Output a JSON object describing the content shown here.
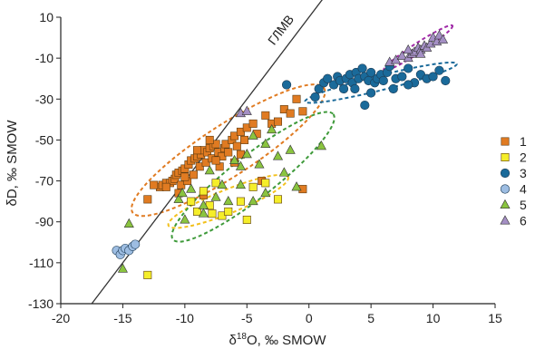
{
  "chart_data": {
    "type": "scatter",
    "xlabel_main": "δ",
    "xlabel_sup": "18",
    "xlabel_rest": "O, ‰ SMOW",
    "ylabel": "δD, ‰ SMOW",
    "xlim": [
      -20,
      15
    ],
    "ylim": [
      -130,
      10
    ],
    "xticks": [
      -20,
      -15,
      -10,
      -5,
      0,
      5,
      10,
      15
    ],
    "yticks": [
      10,
      -10,
      -30,
      -50,
      -70,
      -90,
      -110,
      -130
    ],
    "grid": false,
    "legend_position": "right",
    "gmwl": {
      "label": "ГЛМВ",
      "points": [
        [
          -17.5,
          -130
        ],
        [
          1.5,
          22
        ]
      ]
    },
    "series": [
      {
        "name": "1",
        "marker": "square",
        "color": "#e07b22",
        "points": [
          [
            -13,
            -79
          ],
          [
            -12,
            -73
          ],
          [
            -11.8,
            -72
          ],
          [
            -11.5,
            -71
          ],
          [
            -11.2,
            -71
          ],
          [
            -11,
            -70
          ],
          [
            -10.8,
            -69
          ],
          [
            -10.7,
            -67
          ],
          [
            -10.5,
            -66
          ],
          [
            -10.3,
            -72
          ],
          [
            -10.2,
            -65
          ],
          [
            -10,
            -64
          ],
          [
            -9.8,
            -70
          ],
          [
            -9.7,
            -62
          ],
          [
            -9.5,
            -60
          ],
          [
            -9.3,
            -67
          ],
          [
            -9.2,
            -59
          ],
          [
            -9,
            -58
          ],
          [
            -8.8,
            -63
          ],
          [
            -8.7,
            -57
          ],
          [
            -8.5,
            -55
          ],
          [
            -8.3,
            -61
          ],
          [
            -8.2,
            -56
          ],
          [
            -8,
            -54
          ],
          [
            -7.8,
            -59
          ],
          [
            -7.7,
            -53
          ],
          [
            -7.5,
            -52
          ],
          [
            -7.3,
            -56
          ],
          [
            -7.2,
            -63
          ],
          [
            -7,
            -58
          ],
          [
            -6.8,
            -54
          ],
          [
            -6.7,
            -52
          ],
          [
            -6.5,
            -56
          ],
          [
            -6.2,
            -50
          ],
          [
            -6,
            -48
          ],
          [
            -5.8,
            -53
          ],
          [
            -5.5,
            -46
          ],
          [
            -5.2,
            -50
          ],
          [
            -5,
            -44
          ],
          [
            -4.5,
            -42
          ],
          [
            -4.2,
            -47
          ],
          [
            -3.5,
            -38
          ],
          [
            -3,
            -42
          ],
          [
            -2.5,
            -41
          ],
          [
            -2,
            -35
          ],
          [
            -1.5,
            -37
          ],
          [
            -1,
            -30
          ],
          [
            -0.5,
            -36
          ],
          [
            -0.5,
            -74
          ],
          [
            -3.8,
            -70
          ],
          [
            -9,
            -55
          ],
          [
            -10.5,
            -76
          ],
          [
            -12.5,
            -72
          ],
          [
            -8.5,
            -77
          ],
          [
            -7.5,
            -60
          ],
          [
            -6,
            -61
          ],
          [
            -5.5,
            -57
          ],
          [
            -8,
            -50
          ],
          [
            -10,
            -68
          ],
          [
            -11.5,
            -73
          ]
        ]
      },
      {
        "name": "2",
        "marker": "square",
        "color": "#f5ee2a",
        "points": [
          [
            -13,
            -116
          ],
          [
            -9.5,
            -80
          ],
          [
            -8.5,
            -75
          ],
          [
            -8,
            -82
          ],
          [
            -7.8,
            -86
          ],
          [
            -7,
            -87
          ],
          [
            -6.5,
            -85
          ],
          [
            -5.5,
            -80
          ],
          [
            -5,
            -89
          ],
          [
            -4.5,
            -73
          ],
          [
            -3.5,
            -71
          ],
          [
            -2.5,
            -79
          ],
          [
            -7.5,
            -71
          ],
          [
            -9,
            -85
          ]
        ]
      },
      {
        "name": "3",
        "marker": "circle",
        "color": "#1a6a9a",
        "points": [
          [
            -1.8,
            -23
          ],
          [
            0.5,
            -29
          ],
          [
            0.8,
            -25
          ],
          [
            1.2,
            -22
          ],
          [
            1.5,
            -20
          ],
          [
            2,
            -23
          ],
          [
            2.3,
            -19
          ],
          [
            2.5,
            -21
          ],
          [
            2.8,
            -25
          ],
          [
            3,
            -20
          ],
          [
            3.3,
            -18
          ],
          [
            3.5,
            -22
          ],
          [
            3.8,
            -17
          ],
          [
            4,
            -20
          ],
          [
            4.3,
            -15
          ],
          [
            4.5,
            -19
          ],
          [
            4.8,
            -21
          ],
          [
            5,
            -17
          ],
          [
            5.3,
            -22
          ],
          [
            5.5,
            -20
          ],
          [
            5.8,
            -18
          ],
          [
            6,
            -21
          ],
          [
            6.3,
            -17
          ],
          [
            6.5,
            -14
          ],
          [
            7,
            -20
          ],
          [
            7.5,
            -19
          ],
          [
            8,
            -15
          ],
          [
            8.5,
            -22
          ],
          [
            9,
            -18
          ],
          [
            9.5,
            -20
          ],
          [
            10,
            -19
          ],
          [
            10.5,
            -16
          ],
          [
            11,
            -21
          ],
          [
            4.5,
            -33
          ],
          [
            6.8,
            -25
          ],
          [
            3.7,
            -25
          ],
          [
            5,
            -27
          ],
          [
            8,
            -23
          ]
        ]
      },
      {
        "name": "4",
        "marker": "circle",
        "color": "#9dbde2",
        "points": [
          [
            -15.5,
            -104
          ],
          [
            -15.2,
            -106
          ],
          [
            -15,
            -104
          ],
          [
            -14.8,
            -103
          ],
          [
            -14.5,
            -104
          ],
          [
            -14.2,
            -102
          ],
          [
            -14,
            -101
          ]
        ]
      },
      {
        "name": "5",
        "marker": "triangle",
        "color": "#8ac43f",
        "points": [
          [
            -15,
            -113
          ],
          [
            -14.5,
            -91
          ],
          [
            -10.5,
            -79
          ],
          [
            -10,
            -89
          ],
          [
            -9.5,
            -74
          ],
          [
            -8.5,
            -82
          ],
          [
            -8,
            -65
          ],
          [
            -7.5,
            -78
          ],
          [
            -7,
            -72
          ],
          [
            -6.5,
            -80
          ],
          [
            -6,
            -60
          ],
          [
            -5.5,
            -72
          ],
          [
            -5,
            -57
          ],
          [
            -4.5,
            -48
          ],
          [
            -4,
            -62
          ],
          [
            -3.5,
            -52
          ],
          [
            -3,
            -45
          ],
          [
            -2.5,
            -58
          ],
          [
            -2,
            -66
          ],
          [
            -1.5,
            -55
          ],
          [
            -1,
            -73
          ],
          [
            1,
            -53
          ],
          [
            -4.5,
            -80
          ],
          [
            -8.5,
            -86
          ],
          [
            -3.5,
            -76
          ],
          [
            -10.2,
            -76
          ],
          [
            -5.5,
            -63
          ]
        ]
      },
      {
        "name": "6",
        "marker": "triangle",
        "color": "#a48fc4",
        "points": [
          [
            -5.5,
            -37
          ],
          [
            -5,
            -36
          ],
          [
            6.5,
            -12
          ],
          [
            7,
            -11
          ],
          [
            7.5,
            -9
          ],
          [
            8,
            -10
          ],
          [
            8.3,
            -8
          ],
          [
            8.5,
            -7
          ],
          [
            8.8,
            -5
          ],
          [
            9,
            -6
          ],
          [
            9.3,
            -4
          ],
          [
            9.5,
            -5
          ],
          [
            9.8,
            -3
          ],
          [
            10,
            0
          ],
          [
            10.3,
            -2
          ],
          [
            10.5,
            1
          ],
          [
            10.8,
            -1
          ],
          [
            9,
            -8
          ],
          [
            8,
            -6
          ]
        ]
      }
    ],
    "ellipses": [
      {
        "series": "1",
        "color": "#e07b22",
        "cx": -6.5,
        "cy": -55,
        "rx": 9.2,
        "ry": 12.5,
        "angle_deg": 33
      },
      {
        "series": "2",
        "color": "#f2c01c",
        "cx": -6.5,
        "cy": -80,
        "rx": 5.2,
        "ry": 5.8,
        "angle_deg": 22
      },
      {
        "series": "3",
        "color": "#1a6a9a",
        "cx": 5.8,
        "cy": -22,
        "rx": 6.3,
        "ry": 3.6,
        "angle_deg": 14
      },
      {
        "series": "5",
        "color": "#3e9a3a",
        "cx": -4.5,
        "cy": -68,
        "rx": 8.2,
        "ry": 10.5,
        "angle_deg": 38
      },
      {
        "series": "6",
        "color": "#a02aa7",
        "cx": 8.8,
        "cy": -5,
        "rx": 3.3,
        "ry": 2.4,
        "angle_deg": 33
      }
    ]
  }
}
